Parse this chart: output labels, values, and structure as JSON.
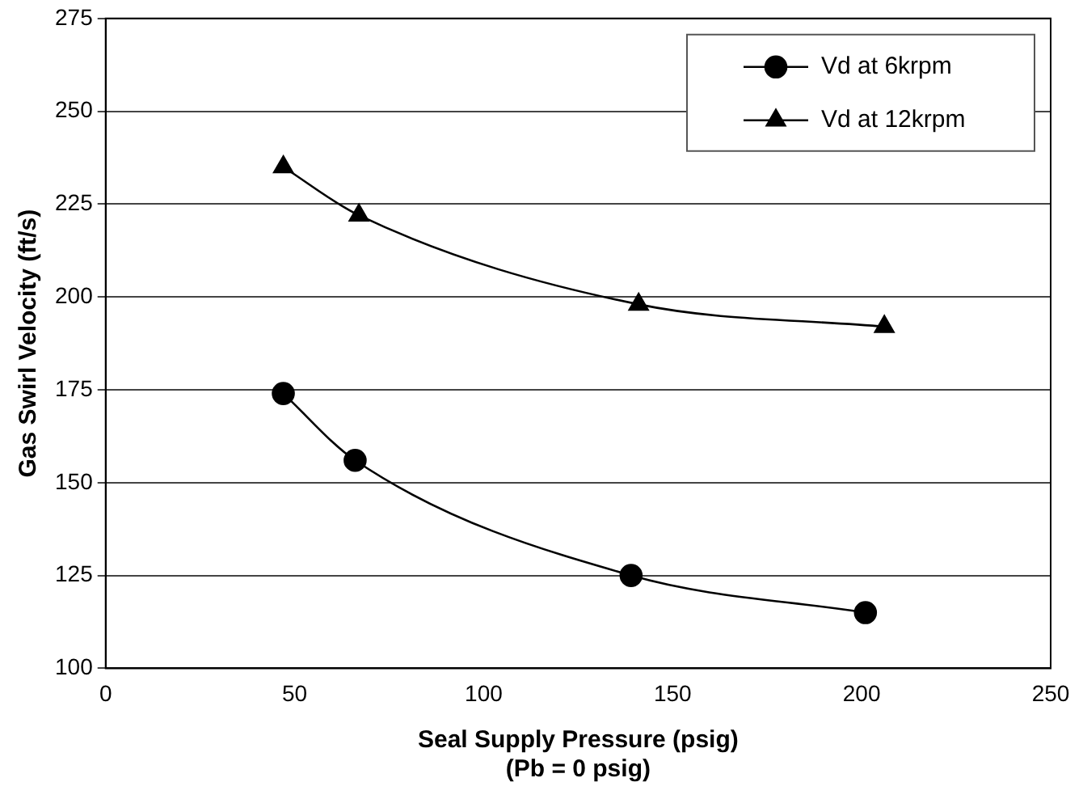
{
  "chart_data": {
    "type": "line",
    "xlabel": "Seal Supply Pressure (psig)\n(Pb = 0 psig)",
    "ylabel": "Gas Swirl Velocity (ft/s)",
    "series": [
      {
        "name": "Vd at 6krpm",
        "color": "#000000",
        "marker": "circle",
        "x": [
          47,
          66,
          139,
          201
        ],
        "values": [
          174,
          156,
          125,
          115
        ]
      },
      {
        "name": "Vd at 12krpm",
        "color": "#000000",
        "marker": "triangle",
        "x": [
          47,
          67,
          141,
          206
        ],
        "values": [
          235,
          222,
          198,
          192
        ]
      }
    ],
    "xlim": [
      0,
      250
    ],
    "xticks": [
      0,
      50,
      100,
      150,
      200,
      250
    ],
    "ylim": [
      100,
      275
    ],
    "yticks": [
      100,
      125,
      150,
      175,
      200,
      225,
      250,
      275
    ],
    "grid": "y",
    "legend": "top right"
  }
}
